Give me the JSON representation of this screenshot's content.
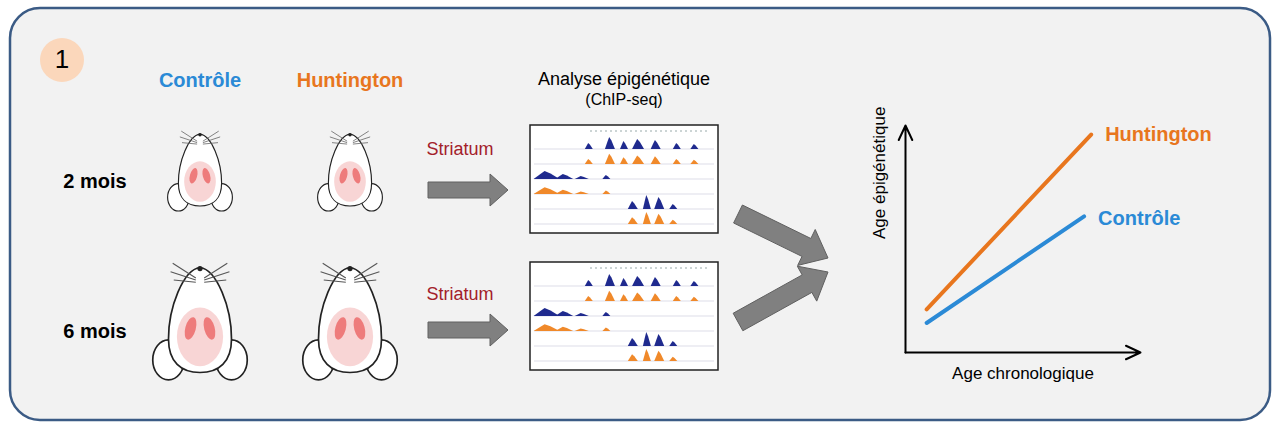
{
  "panel": "1",
  "groups": [
    {
      "label": "Contrôle",
      "color": "#2b8ad6"
    },
    {
      "label": "Huntington",
      "color": "#e8761e"
    }
  ],
  "rows": [
    {
      "label": "2 mois",
      "tissue": "Striatum"
    },
    {
      "label": "6 mois",
      "tissue": "Striatum"
    }
  ],
  "analysis": {
    "title": "Analyse épigénétique",
    "subtitle": "(ChIP-seq)"
  },
  "chart_data": {
    "type": "line",
    "xlabel": "Age chronologique",
    "ylabel": "Age épigénétique",
    "xlim": [
      0,
      100
    ],
    "ylim": [
      0,
      100
    ],
    "tick_labels": false,
    "series": [
      {
        "name": "Huntington",
        "color": "#e8761e",
        "x": [
          9,
          79
        ],
        "values": [
          19,
          96
        ]
      },
      {
        "name": "Contrôle",
        "color": "#2b8ad6",
        "x": [
          9,
          76
        ],
        "values": [
          13,
          60
        ]
      }
    ]
  }
}
